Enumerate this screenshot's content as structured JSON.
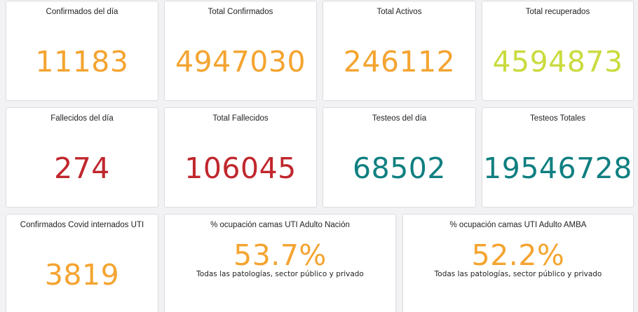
{
  "cards": [
    {
      "title": "Confirmados del día",
      "value": "11183",
      "color": "#f4a430"
    },
    {
      "title": "Total Confirmados",
      "value": "4947030",
      "color": "#f4a430"
    },
    {
      "title": "Total Activos",
      "value": "246112",
      "color": "#f4a430"
    },
    {
      "title": "Total recuperados",
      "value": "4594873",
      "color": "#cadb3f"
    },
    {
      "title": "Fallecidos del día",
      "value": "274",
      "color": "#c0272d"
    },
    {
      "title": "Total Fallecidos",
      "value": "106045",
      "color": "#c0272d"
    },
    {
      "title": "Testeos del día",
      "value": "68502",
      "color": "#0f7f80"
    },
    {
      "title": "Testeos Totales",
      "value": "19546728",
      "color": "#0f7f80"
    },
    {
      "title": "Confirmados Covid internados UTI",
      "value": "3819",
      "color": "#f4a430"
    },
    {
      "title": "% ocupación camas UTI Adulto Nación",
      "value": "53.7%",
      "subtitle": "Todas las patologías, sector público y privado",
      "color": "#f4a430"
    },
    {
      "title": "% ocupación camas UTI Adulto AMBA",
      "value": "52.2%",
      "subtitle": "Todas las patologías, sector público y privado",
      "color": "#f4a430"
    }
  ]
}
